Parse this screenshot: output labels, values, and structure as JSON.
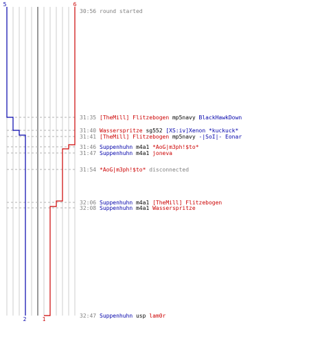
{
  "colors": {
    "blue": "#0000aa",
    "red": "#cc0000",
    "grid": "#cccccc",
    "grid_dark": "#777777",
    "time": "#808080",
    "note": "#808080",
    "dash": "#b0b0b0"
  },
  "teams": {
    "blue": {
      "start": "5",
      "end": "2",
      "start_count": 5,
      "end_count": 2
    },
    "red": {
      "start": "6",
      "end": "1",
      "start_count": 6,
      "end_count": 1
    }
  },
  "events": [
    {
      "time": "30:56",
      "parts": [
        {
          "text": "round started",
          "color": "note"
        }
      ]
    },
    {
      "time": "31:35",
      "parts": [
        {
          "text": "[TheMill] Flitzebogen",
          "color": "red"
        },
        {
          "text": " mp5navy ",
          "color": "black"
        },
        {
          "text": "BlackHawkDown",
          "color": "blue"
        }
      ]
    },
    {
      "time": "31:40",
      "parts": [
        {
          "text": "Wasserspritze",
          "color": "red"
        },
        {
          "text": " sg552 ",
          "color": "black"
        },
        {
          "text": "[XS:iv]Xenon *kuckuck*",
          "color": "blue"
        }
      ]
    },
    {
      "time": "31:41",
      "parts": [
        {
          "text": "[TheMill] Flitzebogen",
          "color": "red"
        },
        {
          "text": " mp5navy ",
          "color": "black"
        },
        {
          "text": "-|SoI|- Eonar",
          "color": "blue"
        }
      ]
    },
    {
      "time": "31:46",
      "parts": [
        {
          "text": "Suppenhuhn",
          "color": "blue"
        },
        {
          "text": " m4a1 ",
          "color": "black"
        },
        {
          "text": "*AoG|m3ph!$to*",
          "color": "red"
        }
      ]
    },
    {
      "time": "31:47",
      "parts": [
        {
          "text": "Suppenhuhn",
          "color": "blue"
        },
        {
          "text": " m4a1 ",
          "color": "black"
        },
        {
          "text": "joneva",
          "color": "red"
        }
      ]
    },
    {
      "time": "31:54",
      "parts": [
        {
          "text": "*AoG|m3ph!$to*",
          "color": "red"
        },
        {
          "text": " disconnected",
          "color": "note"
        }
      ]
    },
    {
      "time": "32:06",
      "parts": [
        {
          "text": "Suppenhuhn",
          "color": "blue"
        },
        {
          "text": " m4a1 ",
          "color": "black"
        },
        {
          "text": "[TheMill] Flitzebogen",
          "color": "red"
        }
      ]
    },
    {
      "time": "32:08",
      "parts": [
        {
          "text": "Suppenhuhn",
          "color": "blue"
        },
        {
          "text": " m4a1 ",
          "color": "black"
        },
        {
          "text": "Wasserspritze",
          "color": "red"
        }
      ]
    },
    {
      "time": "32:47",
      "parts": [
        {
          "text": "Suppenhuhn",
          "color": "blue"
        },
        {
          "text": " usp ",
          "color": "black"
        },
        {
          "text": "lam0r",
          "color": "red"
        }
      ]
    }
  ]
}
